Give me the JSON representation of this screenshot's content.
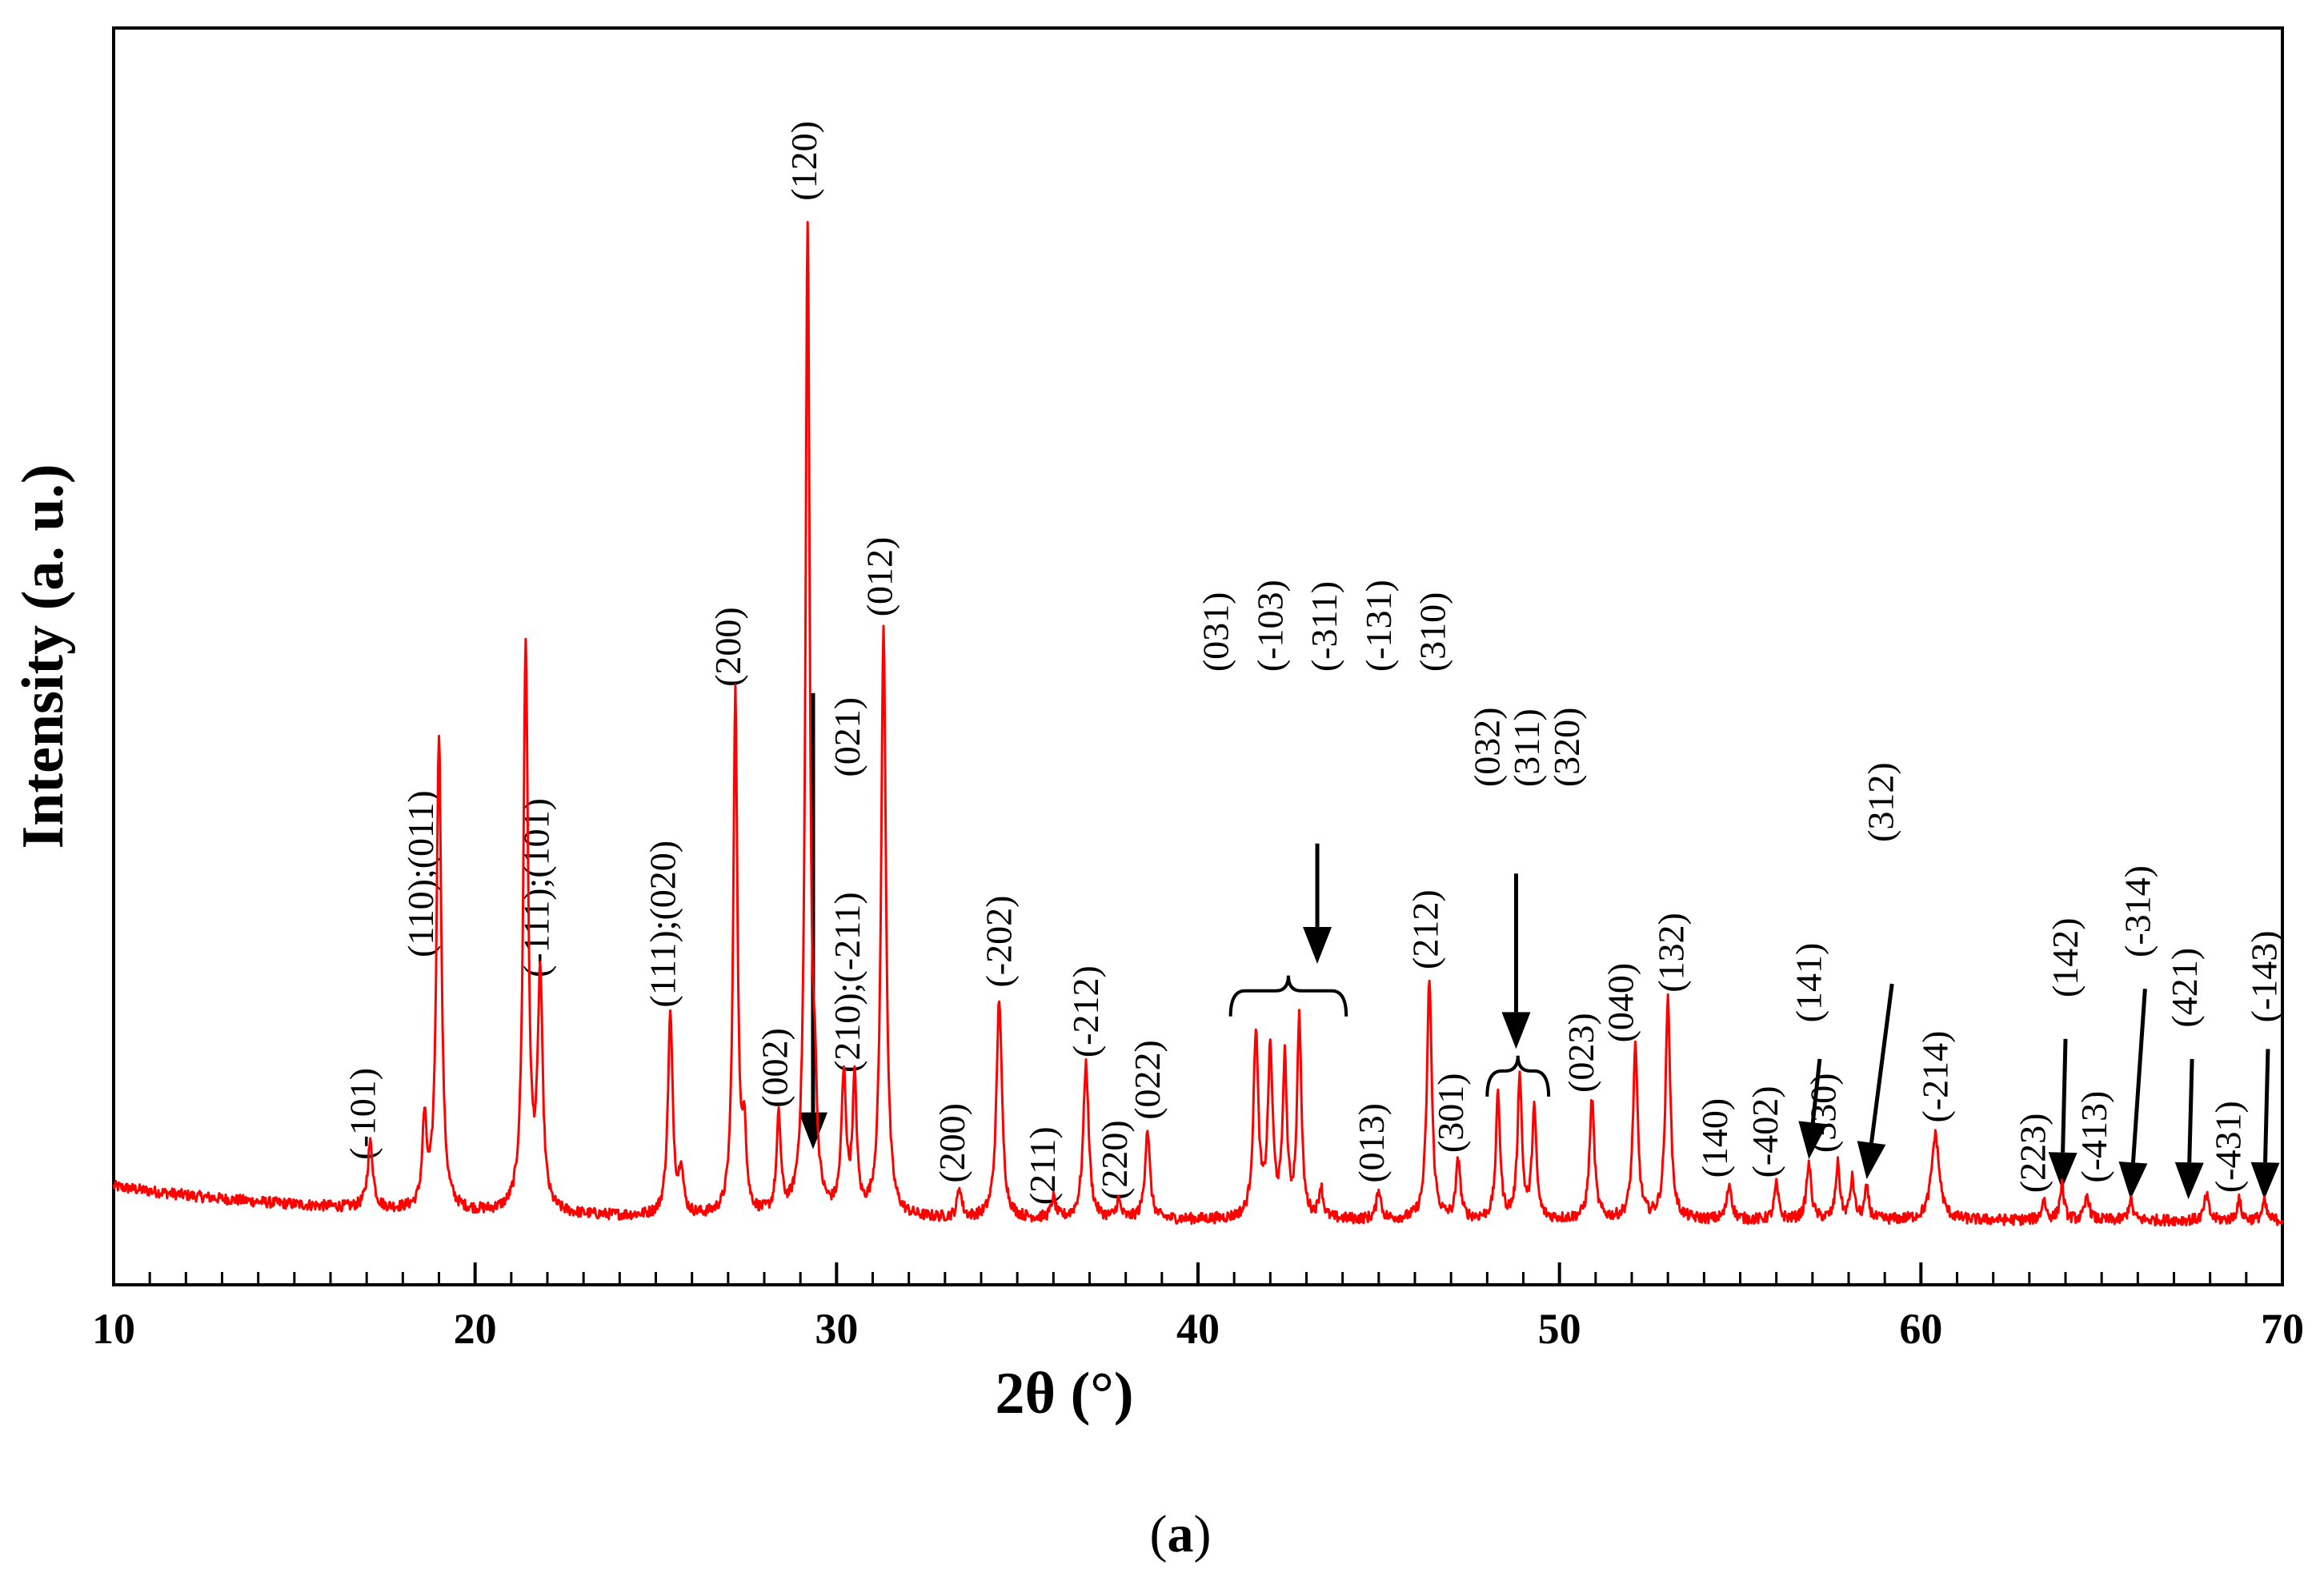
{
  "chart_data": {
    "type": "line",
    "title": "",
    "xlabel": "2θ (°)",
    "ylabel": "Intensity (a. u.)",
    "panel_label": "a",
    "xlim": [
      10,
      70
    ],
    "ylim": [
      0,
      100
    ],
    "x_ticks": [
      10,
      20,
      30,
      40,
      50,
      60,
      70
    ],
    "x_tick_labels": [
      "10",
      "20",
      "30",
      "40",
      "50",
      "60",
      "70"
    ],
    "grid": false,
    "line_color": "#ff0000",
    "axis_color": "#000000",
    "text_color": "#000000",
    "baseline": {
      "start": 4.8,
      "end": 1.6,
      "decay": 6.5,
      "floor": 1.4
    },
    "peaks": [
      {
        "x": 17.1,
        "h": 6.5,
        "w": 0.09
      },
      {
        "x": 18.6,
        "h": 8.5,
        "w": 0.07
      },
      {
        "x": 19.0,
        "h": 47.5,
        "w": 0.08
      },
      {
        "x": 21.4,
        "h": 56.5,
        "w": 0.08
      },
      {
        "x": 21.8,
        "h": 23.0,
        "w": 0.08
      },
      {
        "x": 25.4,
        "h": 20.0,
        "w": 0.08
      },
      {
        "x": 25.7,
        "h": 4.5,
        "w": 0.07
      },
      {
        "x": 27.2,
        "h": 52.0,
        "w": 0.07
      },
      {
        "x": 27.45,
        "h": 8.0,
        "w": 0.06
      },
      {
        "x": 28.4,
        "h": 9.5,
        "w": 0.07
      },
      {
        "x": 29.2,
        "h": 100.0,
        "w": 0.07
      },
      {
        "x": 29.4,
        "h": 9.0,
        "w": 0.06
      },
      {
        "x": 30.2,
        "h": 13.5,
        "w": 0.08
      },
      {
        "x": 30.5,
        "h": 13.0,
        "w": 0.07
      },
      {
        "x": 31.3,
        "h": 58.5,
        "w": 0.08
      },
      {
        "x": 33.4,
        "h": 3.0,
        "w": 0.07
      },
      {
        "x": 34.5,
        "h": 22.0,
        "w": 0.09
      },
      {
        "x": 36.0,
        "h": 2.0,
        "w": 0.07
      },
      {
        "x": 36.9,
        "h": 15.5,
        "w": 0.09
      },
      {
        "x": 37.8,
        "h": 1.8,
        "w": 0.07
      },
      {
        "x": 38.6,
        "h": 9.0,
        "w": 0.08
      },
      {
        "x": 41.6,
        "h": 18.5,
        "w": 0.08
      },
      {
        "x": 42.0,
        "h": 16.5,
        "w": 0.08
      },
      {
        "x": 42.4,
        "h": 15.5,
        "w": 0.07
      },
      {
        "x": 42.8,
        "h": 20.0,
        "w": 0.07
      },
      {
        "x": 43.4,
        "h": 3.0,
        "w": 0.07
      },
      {
        "x": 45.0,
        "h": 3.0,
        "w": 0.07
      },
      {
        "x": 46.4,
        "h": 24.0,
        "w": 0.08
      },
      {
        "x": 47.2,
        "h": 6.0,
        "w": 0.07
      },
      {
        "x": 48.3,
        "h": 12.5,
        "w": 0.07
      },
      {
        "x": 48.9,
        "h": 14.5,
        "w": 0.07
      },
      {
        "x": 49.3,
        "h": 11.0,
        "w": 0.07
      },
      {
        "x": 50.9,
        "h": 12.0,
        "w": 0.08
      },
      {
        "x": 52.1,
        "h": 17.0,
        "w": 0.08
      },
      {
        "x": 53.0,
        "h": 22.0,
        "w": 0.08
      },
      {
        "x": 54.7,
        "h": 3.5,
        "w": 0.08
      },
      {
        "x": 56.0,
        "h": 3.5,
        "w": 0.07
      },
      {
        "x": 56.9,
        "h": 5.5,
        "w": 0.08
      },
      {
        "x": 57.7,
        "h": 5.5,
        "w": 0.07
      },
      {
        "x": 58.1,
        "h": 4.0,
        "w": 0.07
      },
      {
        "x": 58.5,
        "h": 3.0,
        "w": 0.07
      },
      {
        "x": 60.4,
        "h": 8.5,
        "w": 0.13
      },
      {
        "x": 63.4,
        "h": 2.0,
        "w": 0.07
      },
      {
        "x": 63.9,
        "h": 3.5,
        "w": 0.07
      },
      {
        "x": 64.6,
        "h": 2.5,
        "w": 0.07
      },
      {
        "x": 65.8,
        "h": 2.0,
        "w": 0.07
      },
      {
        "x": 67.9,
        "h": 2.5,
        "w": 0.07
      },
      {
        "x": 68.8,
        "h": 2.0,
        "w": 0.07
      },
      {
        "x": 69.5,
        "h": 1.8,
        "w": 0.07
      }
    ],
    "peak_labels": [
      {
        "text": "(-101)",
        "x": 17.0,
        "y": 6.8
      },
      {
        "text": "(110);(011)",
        "x": 18.6,
        "y": 27.0
      },
      {
        "text": "(-111);(101)",
        "x": 21.8,
        "y": 25.0
      },
      {
        "text": "(111);(020)",
        "x": 25.3,
        "y": 22.0
      },
      {
        "text": "(200)",
        "x": 27.1,
        "y": 54.0
      },
      {
        "text": "(002)",
        "x": 28.4,
        "y": 12.0
      },
      {
        "text": "(210);(-211)",
        "x": 30.4,
        "y": 15.5
      },
      {
        "text": "(021)",
        "x": 30.4,
        "y": 45.0
      },
      {
        "text": "(120)",
        "x": 29.2,
        "y": 102.5
      },
      {
        "text": "(012)",
        "x": 31.3,
        "y": 61.0
      },
      {
        "text": "(200)",
        "x": 33.3,
        "y": 4.5
      },
      {
        "text": "(-202)",
        "x": 34.6,
        "y": 24.0
      },
      {
        "text": "(211)",
        "x": 35.8,
        "y": 2.3
      },
      {
        "text": "(-212)",
        "x": 37.0,
        "y": 17.0
      },
      {
        "text": "(220)",
        "x": 37.8,
        "y": 2.8
      },
      {
        "text": "(022)",
        "x": 38.7,
        "y": 10.8
      },
      {
        "text": "(031)",
        "x": 40.6,
        "y": 55.5
      },
      {
        "text": "(-103)",
        "x": 42.1,
        "y": 55.5
      },
      {
        "text": "(-311)",
        "x": 43.6,
        "y": 55.5
      },
      {
        "text": "(-131)",
        "x": 45.1,
        "y": 55.5
      },
      {
        "text": "(310)",
        "x": 46.6,
        "y": 55.5
      },
      {
        "text": "(013)",
        "x": 44.9,
        "y": 4.5
      },
      {
        "text": "(212)",
        "x": 46.4,
        "y": 25.8
      },
      {
        "text": "(301)",
        "x": 47.1,
        "y": 7.5
      },
      {
        "text": "(032)",
        "x": 48.1,
        "y": 44.0
      },
      {
        "text": "(311)",
        "x": 49.2,
        "y": 44.0
      },
      {
        "text": "(320)",
        "x": 50.3,
        "y": 44.0
      },
      {
        "text": "(023)",
        "x": 50.7,
        "y": 13.5
      },
      {
        "text": "(040)",
        "x": 51.8,
        "y": 18.5
      },
      {
        "text": "(132)",
        "x": 53.2,
        "y": 23.5
      },
      {
        "text": "(140)",
        "x": 54.4,
        "y": 5.0
      },
      {
        "text": "(-402)",
        "x": 55.8,
        "y": 5.0
      },
      {
        "text": "(141)",
        "x": 57.0,
        "y": 20.5
      },
      {
        "text": "(330)",
        "x": 57.4,
        "y": 7.5
      },
      {
        "text": "(312)",
        "x": 59.0,
        "y": 38.5
      },
      {
        "text": "(-214)",
        "x": 60.5,
        "y": 10.5
      },
      {
        "text": "(223)",
        "x": 63.2,
        "y": 3.5
      },
      {
        "text": "(142)",
        "x": 64.1,
        "y": 23.0
      },
      {
        "text": "(-413)",
        "x": 64.9,
        "y": 4.5
      },
      {
        "text": "(-314)",
        "x": 66.1,
        "y": 27.0
      },
      {
        "text": "(421)",
        "x": 67.4,
        "y": 20.0
      },
      {
        "text": "(-431)",
        "x": 68.6,
        "y": 3.5
      },
      {
        "text": "(-143)",
        "x": 69.6,
        "y": 20.5
      }
    ],
    "arrows": [
      {
        "x1": 29.35,
        "y1": 54.0,
        "x2": 29.35,
        "y2": 8.5
      },
      {
        "x1": 43.3,
        "y1": 39.0,
        "x2": 43.3,
        "y2": 27.0
      },
      {
        "x1": 48.8,
        "y1": 36.0,
        "x2": 48.8,
        "y2": 18.5
      },
      {
        "x1": 57.2,
        "y1": 17.5,
        "x2": 56.9,
        "y2": 7.5
      },
      {
        "x1": 59.2,
        "y1": 25.0,
        "x2": 58.5,
        "y2": 5.5
      },
      {
        "x1": 64.0,
        "y1": 19.5,
        "x2": 63.9,
        "y2": 4.5
      },
      {
        "x1": 66.2,
        "y1": 24.5,
        "x2": 65.8,
        "y2": 3.5
      },
      {
        "x1": 67.5,
        "y1": 17.5,
        "x2": 67.4,
        "y2": 3.5
      },
      {
        "x1": 69.6,
        "y1": 18.5,
        "x2": 69.5,
        "y2": 3.5
      }
    ],
    "braces": [
      {
        "x1": 40.9,
        "x2": 44.1,
        "y": 24.3
      },
      {
        "x1": 48.0,
        "x2": 49.7,
        "y": 16.3
      }
    ]
  }
}
